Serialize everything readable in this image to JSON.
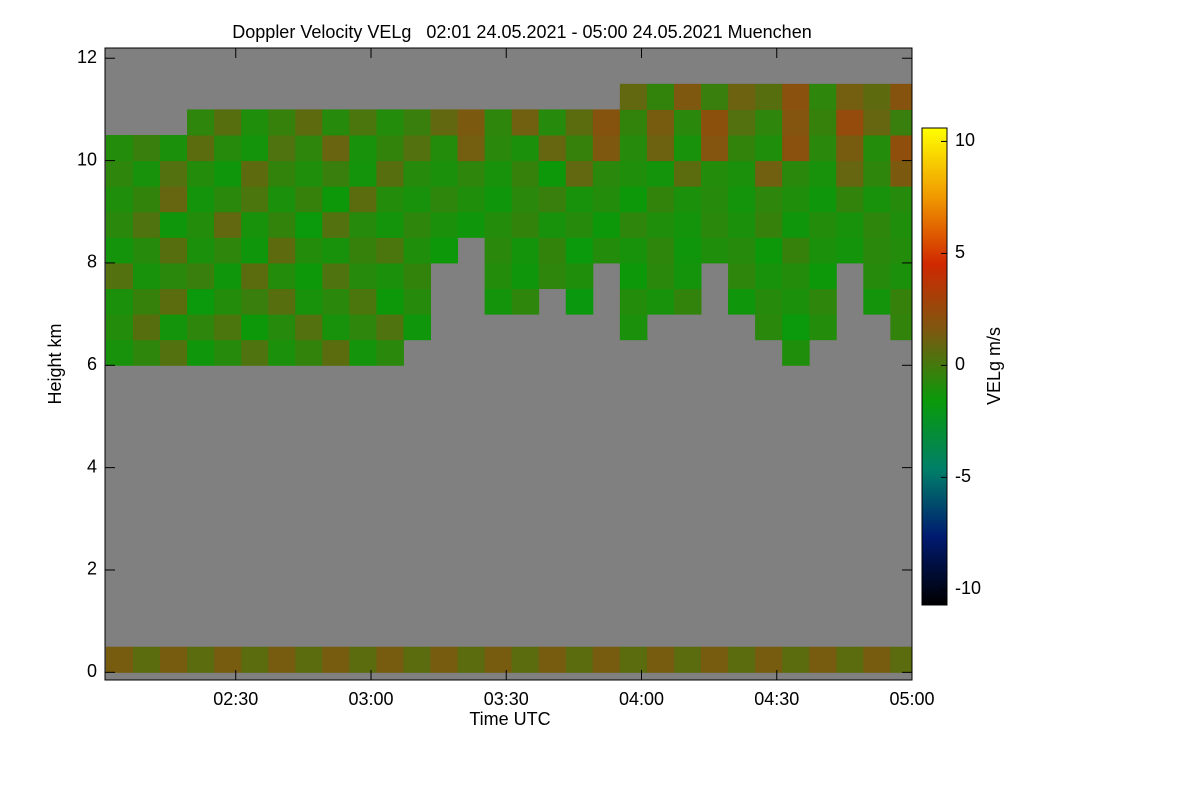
{
  "chart_data": {
    "type": "heatmap",
    "title": "Doppler Velocity VELg   02:01 24.05.2021 - 05:00 24.05.2021 Muenchen",
    "x_label": "Time UTC",
    "y_label": "Height km",
    "colorbar_label": "VELg m/s",
    "xlim": [
      2.0167,
      5.0
    ],
    "xticks": [
      {
        "value": 2.5,
        "label": "02:30"
      },
      {
        "value": 3.0,
        "label": "03:00"
      },
      {
        "value": 3.5,
        "label": "03:30"
      },
      {
        "value": 4.0,
        "label": "04:00"
      },
      {
        "value": 4.5,
        "label": "04:30"
      },
      {
        "value": 5.0,
        "label": "05:00"
      }
    ],
    "ylim": [
      -0.15,
      12.2
    ],
    "yticks": [
      0,
      2,
      4,
      6,
      8,
      10,
      12
    ],
    "zlim": [
      -10.7,
      10.6
    ],
    "zticks": [
      -10,
      -5,
      0,
      5,
      10
    ],
    "colors": [
      "#000000",
      "#001a70",
      "#008068",
      "#0a9a0a",
      "#7a5a10",
      "#d02800",
      "#f09a00",
      "#ffff00"
    ],
    "missing_color": "#808080",
    "x": [
      2.07,
      2.17,
      2.27,
      2.37,
      2.47,
      2.57,
      2.67,
      2.77,
      2.87,
      2.97,
      3.07,
      3.17,
      3.27,
      3.37,
      3.47,
      3.57,
      3.67,
      3.77,
      3.87,
      3.97,
      4.07,
      4.17,
      4.27,
      4.37,
      4.47,
      4.57,
      4.67,
      4.77,
      4.87,
      4.97
    ],
    "y": [
      0.25,
      0.75,
      1.25,
      1.75,
      2.25,
      2.75,
      3.25,
      3.75,
      4.25,
      4.75,
      5.25,
      5.75,
      6.25,
      6.75,
      7.25,
      7.75,
      8.25,
      8.75,
      9.25,
      9.75,
      10.25,
      10.75,
      11.25,
      11.75
    ],
    "z": [
      [
        1.4,
        0.6,
        1.4,
        0.6,
        1.4,
        0.6,
        1.4,
        0.6,
        1.4,
        0.6,
        1.4,
        0.6,
        1.4,
        0.6,
        1.4,
        0.6,
        1.4,
        0.6,
        1.4,
        0.6,
        1.4,
        0.6,
        1.4,
        0.6,
        1.4,
        0.6,
        1.4,
        0.6,
        1.4,
        0.6
      ],
      [
        null,
        null,
        null,
        null,
        null,
        null,
        null,
        null,
        null,
        null,
        null,
        null,
        null,
        null,
        null,
        null,
        null,
        null,
        null,
        null,
        null,
        null,
        null,
        null,
        null,
        null,
        null,
        null,
        null,
        null
      ],
      [
        null,
        null,
        null,
        null,
        null,
        null,
        null,
        null,
        null,
        null,
        null,
        null,
        null,
        null,
        null,
        null,
        null,
        null,
        null,
        null,
        null,
        null,
        null,
        null,
        null,
        null,
        null,
        null,
        null,
        null
      ],
      [
        null,
        null,
        null,
        null,
        null,
        null,
        null,
        null,
        null,
        null,
        null,
        null,
        null,
        null,
        null,
        null,
        null,
        null,
        null,
        null,
        null,
        null,
        null,
        null,
        null,
        null,
        null,
        null,
        null,
        null
      ],
      [
        null,
        null,
        null,
        null,
        null,
        null,
        null,
        null,
        null,
        null,
        null,
        null,
        null,
        null,
        null,
        null,
        null,
        null,
        null,
        null,
        null,
        null,
        null,
        null,
        null,
        null,
        null,
        null,
        null,
        null
      ],
      [
        null,
        null,
        null,
        null,
        null,
        null,
        null,
        null,
        null,
        null,
        null,
        null,
        null,
        null,
        null,
        null,
        null,
        null,
        null,
        null,
        null,
        null,
        null,
        null,
        null,
        null,
        null,
        null,
        null,
        null
      ],
      [
        null,
        null,
        null,
        null,
        null,
        null,
        null,
        null,
        null,
        null,
        null,
        null,
        null,
        null,
        null,
        null,
        null,
        null,
        null,
        null,
        null,
        null,
        null,
        null,
        null,
        null,
        null,
        null,
        null,
        null
      ],
      [
        null,
        null,
        null,
        null,
        null,
        null,
        null,
        null,
        null,
        null,
        null,
        null,
        null,
        null,
        null,
        null,
        null,
        null,
        null,
        null,
        null,
        null,
        null,
        null,
        null,
        null,
        null,
        null,
        null,
        null
      ],
      [
        null,
        null,
        null,
        null,
        null,
        null,
        null,
        null,
        null,
        null,
        null,
        null,
        null,
        null,
        null,
        null,
        null,
        null,
        null,
        null,
        null,
        null,
        null,
        null,
        null,
        null,
        null,
        null,
        null,
        null
      ],
      [
        null,
        null,
        null,
        null,
        null,
        null,
        null,
        null,
        null,
        null,
        null,
        null,
        null,
        null,
        null,
        null,
        null,
        null,
        null,
        null,
        null,
        null,
        null,
        null,
        null,
        null,
        null,
        null,
        null,
        null
      ],
      [
        null,
        null,
        null,
        null,
        null,
        null,
        null,
        null,
        null,
        null,
        null,
        null,
        null,
        null,
        null,
        null,
        null,
        null,
        null,
        null,
        null,
        null,
        null,
        null,
        null,
        null,
        null,
        null,
        null,
        null
      ],
      [
        null,
        null,
        null,
        null,
        null,
        null,
        null,
        null,
        null,
        null,
        null,
        null,
        null,
        null,
        null,
        null,
        null,
        null,
        null,
        null,
        null,
        null,
        null,
        null,
        null,
        null,
        null,
        null,
        null,
        null
      ],
      [
        -1.2,
        -0.6,
        0.4,
        -1.4,
        -0.8,
        0.3,
        -1.1,
        -0.5,
        0.6,
        -1.3,
        -0.7,
        null,
        null,
        null,
        null,
        null,
        null,
        null,
        null,
        null,
        null,
        null,
        null,
        null,
        null,
        -1.0,
        null,
        null,
        null,
        null
      ],
      [
        -0.9,
        0.5,
        -1.3,
        -0.6,
        0.2,
        -1.5,
        -0.8,
        0.4,
        -1.2,
        -0.6,
        0.3,
        -1.4,
        null,
        null,
        null,
        null,
        null,
        null,
        null,
        -1.1,
        null,
        null,
        null,
        null,
        -0.7,
        -1.6,
        -0.9,
        null,
        null,
        -0.5
      ],
      [
        -1.1,
        -0.4,
        0.6,
        -1.6,
        -0.9,
        -0.3,
        0.5,
        -1.2,
        -0.7,
        0.2,
        -1.5,
        -0.8,
        null,
        null,
        -1.3,
        -0.6,
        null,
        -1.7,
        null,
        -0.9,
        -1.2,
        -0.5,
        null,
        -1.4,
        -0.8,
        -1.1,
        -0.6,
        null,
        -1.3,
        -0.4
      ],
      [
        0.4,
        -1.2,
        -0.7,
        -0.3,
        -1.4,
        0.6,
        -0.9,
        -1.5,
        0.3,
        -0.8,
        -1.1,
        -0.5,
        null,
        null,
        -0.9,
        -1.4,
        -0.6,
        -1.0,
        null,
        -1.5,
        -0.7,
        -1.3,
        null,
        -0.6,
        -1.2,
        -0.9,
        -1.5,
        null,
        -0.8,
        -1.1
      ],
      [
        -1.3,
        -0.8,
        0.5,
        -1.1,
        -0.6,
        -1.4,
        0.7,
        -0.9,
        -1.2,
        -0.4,
        0.2,
        -1.0,
        -1.5,
        null,
        -0.7,
        -1.3,
        -0.5,
        -1.6,
        -0.9,
        -1.2,
        -0.6,
        -1.4,
        -1.0,
        -0.8,
        -1.5,
        -0.4,
        -1.1,
        -1.3,
        -0.7,
        -0.9
      ],
      [
        -0.7,
        0.3,
        -1.4,
        -0.9,
        0.8,
        -1.2,
        -0.5,
        -1.6,
        0.4,
        -0.8,
        -1.3,
        -0.6,
        -1.1,
        -1.4,
        -0.9,
        -0.5,
        -1.2,
        -0.8,
        -1.5,
        -0.6,
        -1.0,
        -1.3,
        -0.7,
        -1.1,
        -0.4,
        -1.4,
        -0.9,
        -1.2,
        -0.6,
        -1.0
      ],
      [
        -1.0,
        -0.5,
        0.9,
        -1.3,
        -0.7,
        0.2,
        -1.1,
        -0.4,
        -1.5,
        0.6,
        -0.9,
        -1.2,
        -0.6,
        -1.0,
        -1.4,
        -0.7,
        -0.3,
        -1.2,
        -0.9,
        -1.5,
        -0.5,
        -1.1,
        -0.8,
        -1.3,
        -0.6,
        -1.0,
        -1.4,
        -0.5,
        -1.2,
        -0.8
      ],
      [
        -0.6,
        -1.2,
        0.4,
        -0.9,
        -1.4,
        0.7,
        -0.5,
        -1.0,
        -0.3,
        -1.3,
        0.5,
        -0.8,
        -1.1,
        -0.6,
        -1.2,
        -0.4,
        -1.5,
        0.8,
        -0.7,
        -1.0,
        -1.3,
        0.6,
        -0.9,
        -1.1,
        1.2,
        -0.7,
        -1.2,
        0.9,
        -0.6,
        1.5
      ],
      [
        -0.9,
        -0.3,
        -1.1,
        0.6,
        -0.8,
        -1.3,
        0.3,
        -0.6,
        1.0,
        -1.2,
        -0.5,
        0.4,
        -0.9,
        1.3,
        -0.7,
        -1.1,
        0.9,
        -0.4,
        1.6,
        -0.8,
        1.1,
        -1.2,
        1.8,
        -0.5,
        -1.0,
        2.0,
        -0.7,
        1.4,
        -0.9,
        2.2
      ],
      [
        null,
        null,
        null,
        -0.6,
        0.5,
        -1.0,
        -0.4,
        0.7,
        -0.8,
        0.2,
        -0.9,
        -0.3,
        0.8,
        1.5,
        -0.6,
        1.2,
        -0.8,
        0.6,
        1.9,
        -0.5,
        1.4,
        -0.7,
        2.1,
        0.4,
        -0.6,
        1.8,
        -0.4,
        2.4,
        0.9,
        -0.3
      ],
      [
        null,
        null,
        null,
        null,
        null,
        null,
        null,
        null,
        null,
        null,
        null,
        null,
        null,
        null,
        null,
        null,
        null,
        null,
        null,
        0.8,
        -0.5,
        1.6,
        -0.3,
        1.1,
        0.5,
        2.0,
        -0.6,
        1.3,
        0.7,
        1.9
      ],
      [
        null,
        null,
        null,
        null,
        null,
        null,
        null,
        null,
        null,
        null,
        null,
        null,
        null,
        null,
        null,
        null,
        null,
        null,
        null,
        null,
        null,
        null,
        null,
        null,
        null,
        null,
        null,
        null,
        null,
        null
      ]
    ]
  }
}
